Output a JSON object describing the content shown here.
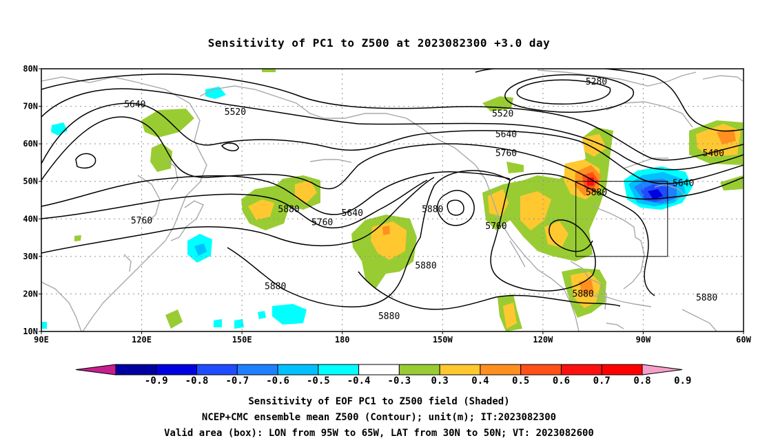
{
  "title": "Sensitivity of PC1 to Z500 at 2023082300 +3.0 day",
  "map": {
    "lon_range": [
      90,
      300
    ],
    "lat_range": [
      10,
      80
    ],
    "lat_labels": [
      "80N",
      "70N",
      "60N",
      "50N",
      "40N",
      "30N",
      "20N",
      "10N"
    ],
    "lon_labels": [
      "90E",
      "120E",
      "150E",
      "180",
      "150W",
      "120W",
      "90W",
      "60W"
    ],
    "box": {
      "lon_min_label": "95W",
      "lon_max_label": "65W",
      "lat_min_label": "30N",
      "lat_max_label": "50N"
    }
  },
  "contour_labels": [
    {
      "text": "5280",
      "lon": 256,
      "lat": 76.5
    },
    {
      "text": "5640",
      "lon": 118,
      "lat": 70.5
    },
    {
      "text": "5520",
      "lon": 148,
      "lat": 68.5
    },
    {
      "text": "5520",
      "lon": 228,
      "lat": 68
    },
    {
      "text": "5640",
      "lon": 229,
      "lat": 62.5
    },
    {
      "text": "5760",
      "lon": 229,
      "lat": 57.5
    },
    {
      "text": "5400",
      "lon": 291,
      "lat": 57.5
    },
    {
      "text": "5640",
      "lon": 282,
      "lat": 49.5
    },
    {
      "text": "5880",
      "lon": 256,
      "lat": 47
    },
    {
      "text": "5880",
      "lon": 207,
      "lat": 42.5
    },
    {
      "text": "5880",
      "lon": 164,
      "lat": 42.5
    },
    {
      "text": "5640",
      "lon": 183,
      "lat": 41.5
    },
    {
      "text": "5760",
      "lon": 174,
      "lat": 39
    },
    {
      "text": "5760",
      "lon": 226,
      "lat": 38
    },
    {
      "text": "5760",
      "lon": 120,
      "lat": 39.5
    },
    {
      "text": "5880",
      "lon": 205,
      "lat": 27.5
    },
    {
      "text": "5880",
      "lon": 160,
      "lat": 22
    },
    {
      "text": "5880",
      "lon": 252,
      "lat": 20
    },
    {
      "text": "5880",
      "lon": 289,
      "lat": 19
    },
    {
      "text": "5880",
      "lon": 194,
      "lat": 14
    }
  ],
  "colorbar": {
    "labels": [
      "-0.9",
      "-0.8",
      "-0.7",
      "-0.6",
      "-0.5",
      "-0.4",
      "-0.3",
      "0.3",
      "0.4",
      "0.5",
      "0.6",
      "0.7",
      "0.8",
      "0.9"
    ],
    "colors": [
      "#c61f8f",
      "#0000a0",
      "#0000e0",
      "#1f4cff",
      "#1f80ff",
      "#00c0ff",
      "#00ffff",
      "#ffffff",
      "#99cc33",
      "#ffc830",
      "#ff9020",
      "#ff5018",
      "#ff1010",
      "#ff0000",
      "#f5a0c8"
    ]
  },
  "footer": {
    "line1": "Sensitivity of EOF PC1 to Z500 field (Shaded)",
    "line2": "NCEP+CMC ensemble mean Z500 (Contour); unit(m); IT:2023082300",
    "line3": "Valid area (box): LON from 95W to 65W, LAT from 30N to 50N; VT: 2023082600"
  }
}
